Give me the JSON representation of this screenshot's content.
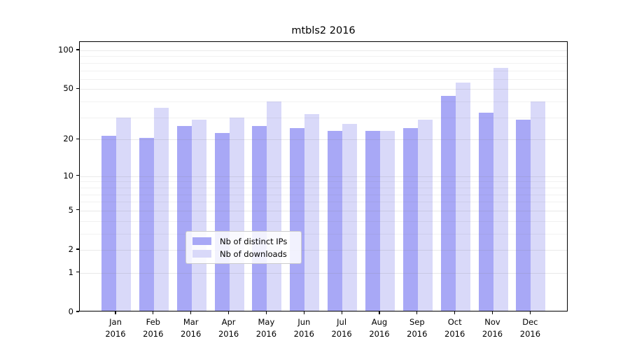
{
  "chart_data": {
    "type": "bar",
    "title": "mtbls2 2016",
    "categories": [
      "Jan",
      "Feb",
      "Mar",
      "Apr",
      "May",
      "Jun",
      "Jul",
      "Aug",
      "Sep",
      "Oct",
      "Nov",
      "Dec"
    ],
    "category_year": "2016",
    "series": [
      {
        "name": "Nb of distinct IPs",
        "color": "#a8a8f6",
        "values": [
          21,
          20,
          25,
          22,
          25,
          24,
          23,
          23,
          24,
          43,
          32,
          28
        ]
      },
      {
        "name": "Nb of downloads",
        "color": "#d9d9f9",
        "values": [
          29,
          35,
          28,
          29,
          39,
          31,
          26,
          23,
          28,
          55,
          71,
          39
        ]
      }
    ],
    "yscale": "log(1+x)",
    "y_major_ticks": [
      0,
      1,
      2,
      5,
      10,
      20,
      50,
      100
    ],
    "y_minor_gridlines": [
      3,
      4,
      6,
      7,
      8,
      9,
      30,
      40,
      60,
      70,
      80,
      90
    ],
    "ylim": [
      0,
      130
    ],
    "grid": true,
    "legend_position": "lower center",
    "frame_color": "#000000",
    "background_color": "#ffffff"
  }
}
